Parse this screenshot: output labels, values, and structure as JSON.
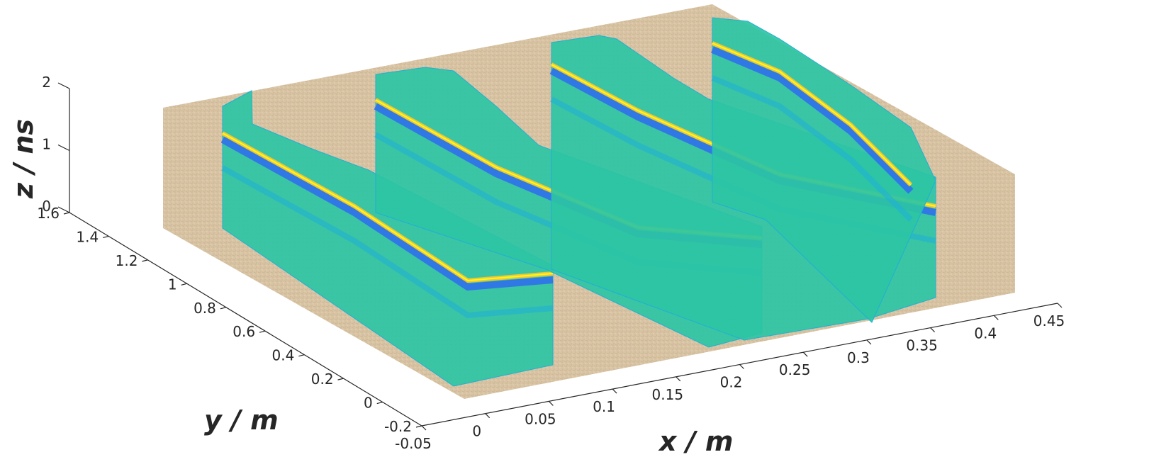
{
  "chart_data": {
    "type": "3d-surface-sections",
    "title": "",
    "xlabel": "x / m",
    "ylabel": "y / m",
    "zlabel": "z / ns",
    "x_ticks": [
      "-0.05",
      "0",
      "0.05",
      "0.1",
      "0.15",
      "0.2",
      "0.25",
      "0.3",
      "0.35",
      "0.4",
      "0.45"
    ],
    "y_ticks": [
      "-0.2",
      "0",
      "0.2",
      "0.4",
      "0.6",
      "0.8",
      "1",
      "1.2",
      "1.4",
      "1.6"
    ],
    "z_ticks": [
      "0",
      "1",
      "2"
    ],
    "xlim": [
      -0.05,
      0.45
    ],
    "ylim": [
      -0.2,
      1.6
    ],
    "zlim": [
      0,
      2
    ],
    "grid": false,
    "legend": "none",
    "colormap": [
      "#3e26a8",
      "#2f6bf0",
      "#1fb0d6",
      "#2dc4a4",
      "#7fcb62",
      "#f2c53a",
      "#f9fb15"
    ],
    "ground_color": "#d8c4a4",
    "sections": [
      {
        "x": 0.04,
        "x_end": 0.0,
        "y_start": 1.25,
        "y_end": -0.15,
        "heights": [
          1.0,
          0.95,
          0.92,
          0.9,
          0.9,
          0.92,
          0.94,
          0.9
        ]
      },
      {
        "x": 0.14,
        "x_end": 0.1,
        "y_start": 1.25,
        "y_end": -0.15,
        "heights": [
          1.45,
          1.35,
          1.25,
          1.2,
          1.1,
          1.05,
          1.0,
          0.98
        ]
      },
      {
        "x": 0.28,
        "x_end": 0.24,
        "y_start": 1.25,
        "y_end": -0.15,
        "heights": [
          1.5,
          1.4,
          1.3,
          1.2,
          1.15,
          1.1,
          1.05,
          1.0
        ]
      },
      {
        "x": 0.41,
        "x_end": 0.37,
        "y_start": 1.25,
        "y_end": -0.15,
        "heights": [
          1.6,
          1.5,
          1.4,
          1.3,
          1.2,
          1.15,
          1.1,
          1.08
        ]
      }
    ]
  }
}
